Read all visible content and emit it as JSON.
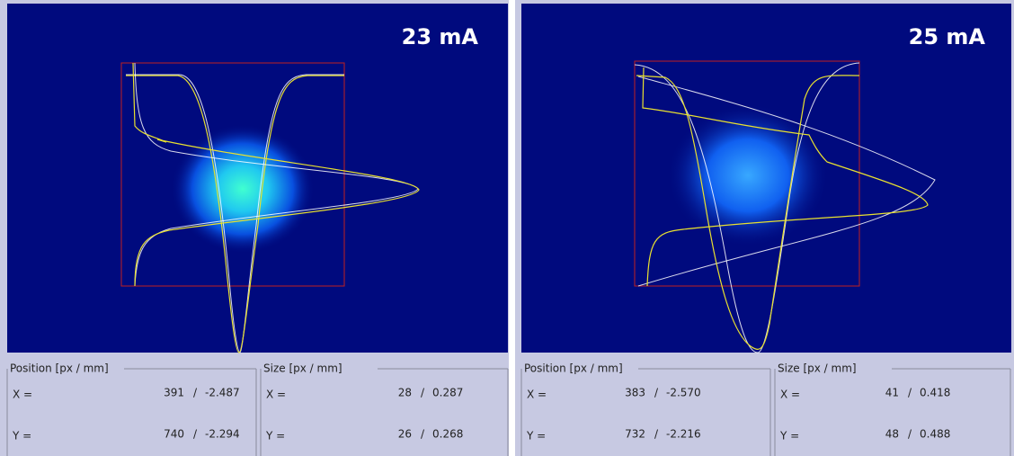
{
  "panels": [
    {
      "label": "23 mA",
      "position": {
        "title": "Position [px / mm]",
        "rows": [
          {
            "name": "X =",
            "px": "391",
            "sep": "/",
            "mm": "-2.487"
          },
          {
            "name": "Y =",
            "px": "740",
            "sep": "/",
            "mm": "-2.294"
          }
        ]
      },
      "size": {
        "title": "Size [px / mm]",
        "rows": [
          {
            "name": "X =",
            "px": "28",
            "sep": "/",
            "mm": "0.287"
          },
          {
            "name": "Y =",
            "px": "26",
            "sep": "/",
            "mm": "0.268"
          }
        ]
      }
    },
    {
      "label": "25 mA",
      "position": {
        "title": "Position [px / mm]",
        "rows": [
          {
            "name": "X =",
            "px": "383",
            "sep": "/",
            "mm": "-2.570"
          },
          {
            "name": "Y =",
            "px": "732",
            "sep": "/",
            "mm": "-2.216"
          }
        ]
      },
      "size": {
        "title": "Size [px / mm]",
        "rows": [
          {
            "name": "X =",
            "px": "41",
            "sep": "/",
            "mm": "0.418"
          },
          {
            "name": "Y =",
            "px": "48",
            "sep": "/",
            "mm": "0.488"
          }
        ]
      }
    }
  ]
}
